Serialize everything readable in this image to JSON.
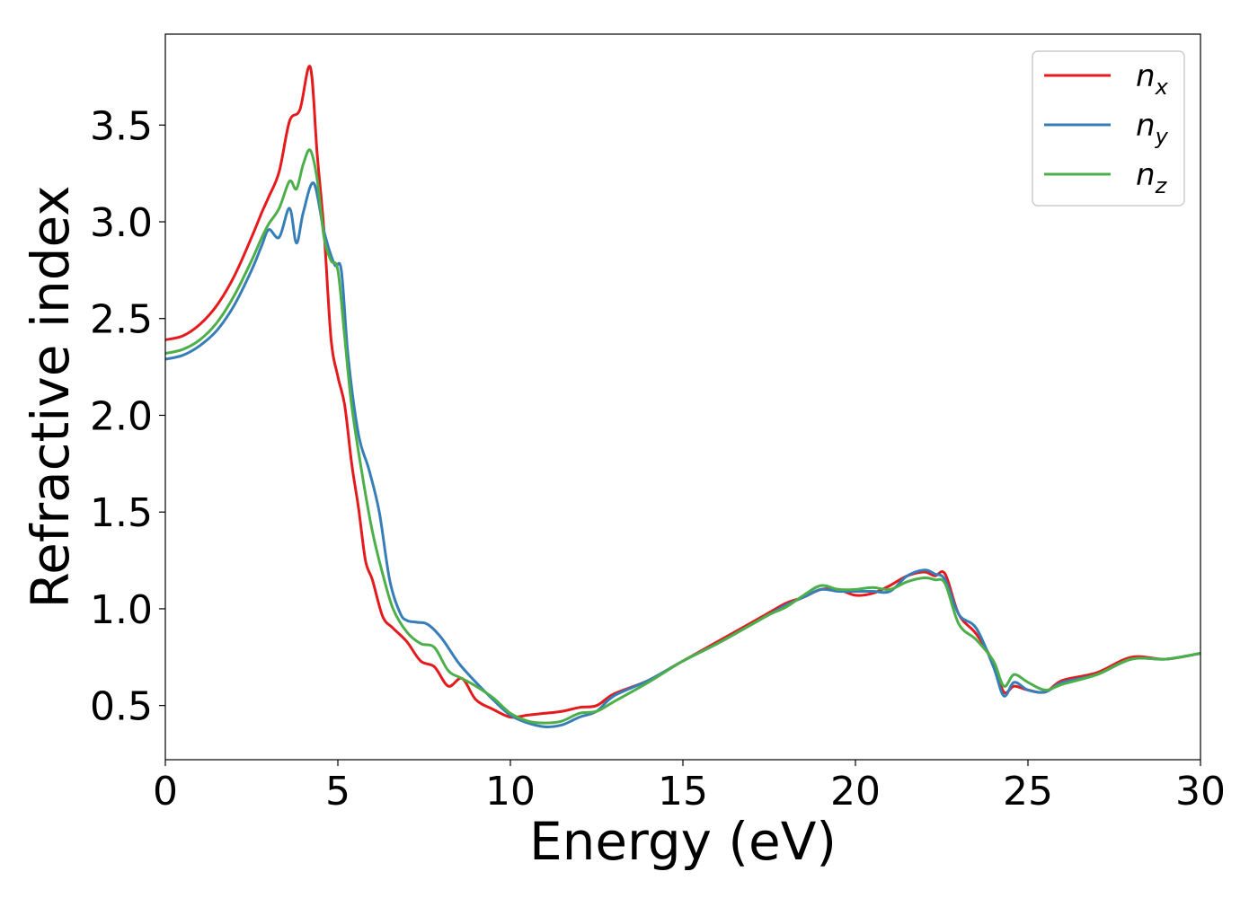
{
  "chart_data": {
    "type": "line",
    "xlabel": "Energy (eV)",
    "ylabel": "Refractive index",
    "xlim": [
      0,
      30
    ],
    "ylim": [
      0.22,
      3.97
    ],
    "xticks": [
      0,
      5,
      10,
      15,
      20,
      25,
      30
    ],
    "yticks": [
      0.5,
      1.0,
      1.5,
      2.0,
      2.5,
      3.0,
      3.5
    ],
    "xtick_labels": [
      "0",
      "5",
      "10",
      "15",
      "20",
      "25",
      "30"
    ],
    "ytick_labels": [
      "0.5",
      "1.0",
      "1.5",
      "2.0",
      "2.5",
      "3.0",
      "3.5"
    ],
    "grid": false,
    "legend_position": "top-right",
    "series": [
      {
        "name": "n",
        "subscript": "x",
        "color": "#e41a1c",
        "x": [
          0,
          0.5,
          1,
          1.5,
          2,
          2.5,
          2.8,
          3,
          3.3,
          3.6,
          3.9,
          4.2,
          4.4,
          4.6,
          4.8,
          5,
          5.2,
          5.4,
          5.6,
          5.8,
          6,
          6.3,
          6.6,
          7,
          7.4,
          7.8,
          8.2,
          8.6,
          9,
          9.5,
          10,
          10.5,
          11,
          11.5,
          12,
          12.5,
          13,
          14,
          15,
          16,
          17,
          17.5,
          18,
          18.5,
          19,
          19.5,
          20,
          20.5,
          21,
          21.5,
          22,
          22.3,
          22.6,
          23,
          23.5,
          24,
          24.3,
          24.6,
          25,
          25.5,
          26,
          27,
          28,
          29,
          30
        ],
        "y": [
          2.39,
          2.41,
          2.47,
          2.57,
          2.72,
          2.92,
          3.05,
          3.13,
          3.26,
          3.52,
          3.58,
          3.8,
          3.35,
          2.95,
          2.4,
          2.2,
          2.05,
          1.75,
          1.52,
          1.25,
          1.15,
          0.96,
          0.9,
          0.83,
          0.73,
          0.7,
          0.6,
          0.64,
          0.53,
          0.48,
          0.44,
          0.45,
          0.46,
          0.47,
          0.49,
          0.5,
          0.56,
          0.63,
          0.73,
          0.83,
          0.93,
          0.98,
          1.03,
          1.06,
          1.1,
          1.1,
          1.07,
          1.08,
          1.12,
          1.17,
          1.19,
          1.17,
          1.18,
          0.97,
          0.87,
          0.72,
          0.57,
          0.6,
          0.58,
          0.57,
          0.63,
          0.67,
          0.75,
          0.74,
          0.77
        ]
      },
      {
        "name": "n",
        "subscript": "y",
        "color": "#377eb8",
        "x": [
          0,
          0.5,
          1,
          1.5,
          2,
          2.5,
          2.8,
          3,
          3.3,
          3.6,
          3.8,
          4,
          4.3,
          4.6,
          4.9,
          5.1,
          5.3,
          5.6,
          5.9,
          6.2,
          6.5,
          6.8,
          7,
          7.3,
          7.6,
          8,
          8.5,
          9,
          9.5,
          10,
          10.5,
          11,
          11.5,
          12,
          12.5,
          13,
          14,
          15,
          16,
          17,
          17.5,
          18,
          18.5,
          19,
          19.5,
          20,
          20.5,
          21,
          21.5,
          22,
          22.3,
          22.6,
          23,
          23.5,
          24,
          24.3,
          24.6,
          25,
          25.5,
          26,
          27,
          28,
          29,
          30
        ],
        "y": [
          2.29,
          2.31,
          2.36,
          2.44,
          2.57,
          2.75,
          2.88,
          2.96,
          2.92,
          3.07,
          2.89,
          3.05,
          3.2,
          2.95,
          2.78,
          2.75,
          2.3,
          1.9,
          1.72,
          1.5,
          1.15,
          0.98,
          0.94,
          0.93,
          0.92,
          0.85,
          0.72,
          0.62,
          0.53,
          0.45,
          0.41,
          0.39,
          0.4,
          0.44,
          0.47,
          0.55,
          0.63,
          0.73,
          0.82,
          0.92,
          0.97,
          1.02,
          1.06,
          1.1,
          1.09,
          1.09,
          1.09,
          1.09,
          1.17,
          1.2,
          1.18,
          1.15,
          0.97,
          0.9,
          0.7,
          0.55,
          0.62,
          0.58,
          0.57,
          0.62,
          0.66,
          0.74,
          0.74,
          0.77
        ]
      },
      {
        "name": "n",
        "subscript": "z",
        "color": "#4daf4a",
        "x": [
          0,
          0.5,
          1,
          1.5,
          2,
          2.5,
          2.8,
          3,
          3.3,
          3.6,
          3.8,
          4,
          4.2,
          4.4,
          4.6,
          4.8,
          5,
          5.2,
          5.4,
          5.7,
          6,
          6.3,
          6.6,
          7,
          7.4,
          7.8,
          8.2,
          8.6,
          9,
          9.5,
          10,
          10.5,
          11,
          11.5,
          12,
          12.5,
          13,
          14,
          15,
          16,
          17,
          17.5,
          18,
          18.5,
          19,
          19.5,
          20,
          20.5,
          21,
          21.5,
          22,
          22.3,
          22.6,
          23,
          23.5,
          24,
          24.3,
          24.6,
          25,
          25.5,
          26,
          27,
          28,
          29,
          30
        ],
        "y": [
          2.32,
          2.34,
          2.39,
          2.48,
          2.62,
          2.8,
          2.92,
          2.99,
          3.07,
          3.21,
          3.17,
          3.3,
          3.37,
          3.22,
          2.92,
          2.8,
          2.75,
          2.4,
          2.05,
          1.7,
          1.4,
          1.18,
          1.0,
          0.88,
          0.82,
          0.8,
          0.68,
          0.64,
          0.6,
          0.54,
          0.46,
          0.42,
          0.41,
          0.42,
          0.46,
          0.47,
          0.52,
          0.62,
          0.73,
          0.82,
          0.92,
          0.97,
          1.01,
          1.07,
          1.12,
          1.1,
          1.1,
          1.11,
          1.1,
          1.14,
          1.16,
          1.15,
          1.13,
          0.92,
          0.84,
          0.73,
          0.6,
          0.66,
          0.62,
          0.58,
          0.61,
          0.66,
          0.74,
          0.74,
          0.77
        ]
      }
    ]
  }
}
